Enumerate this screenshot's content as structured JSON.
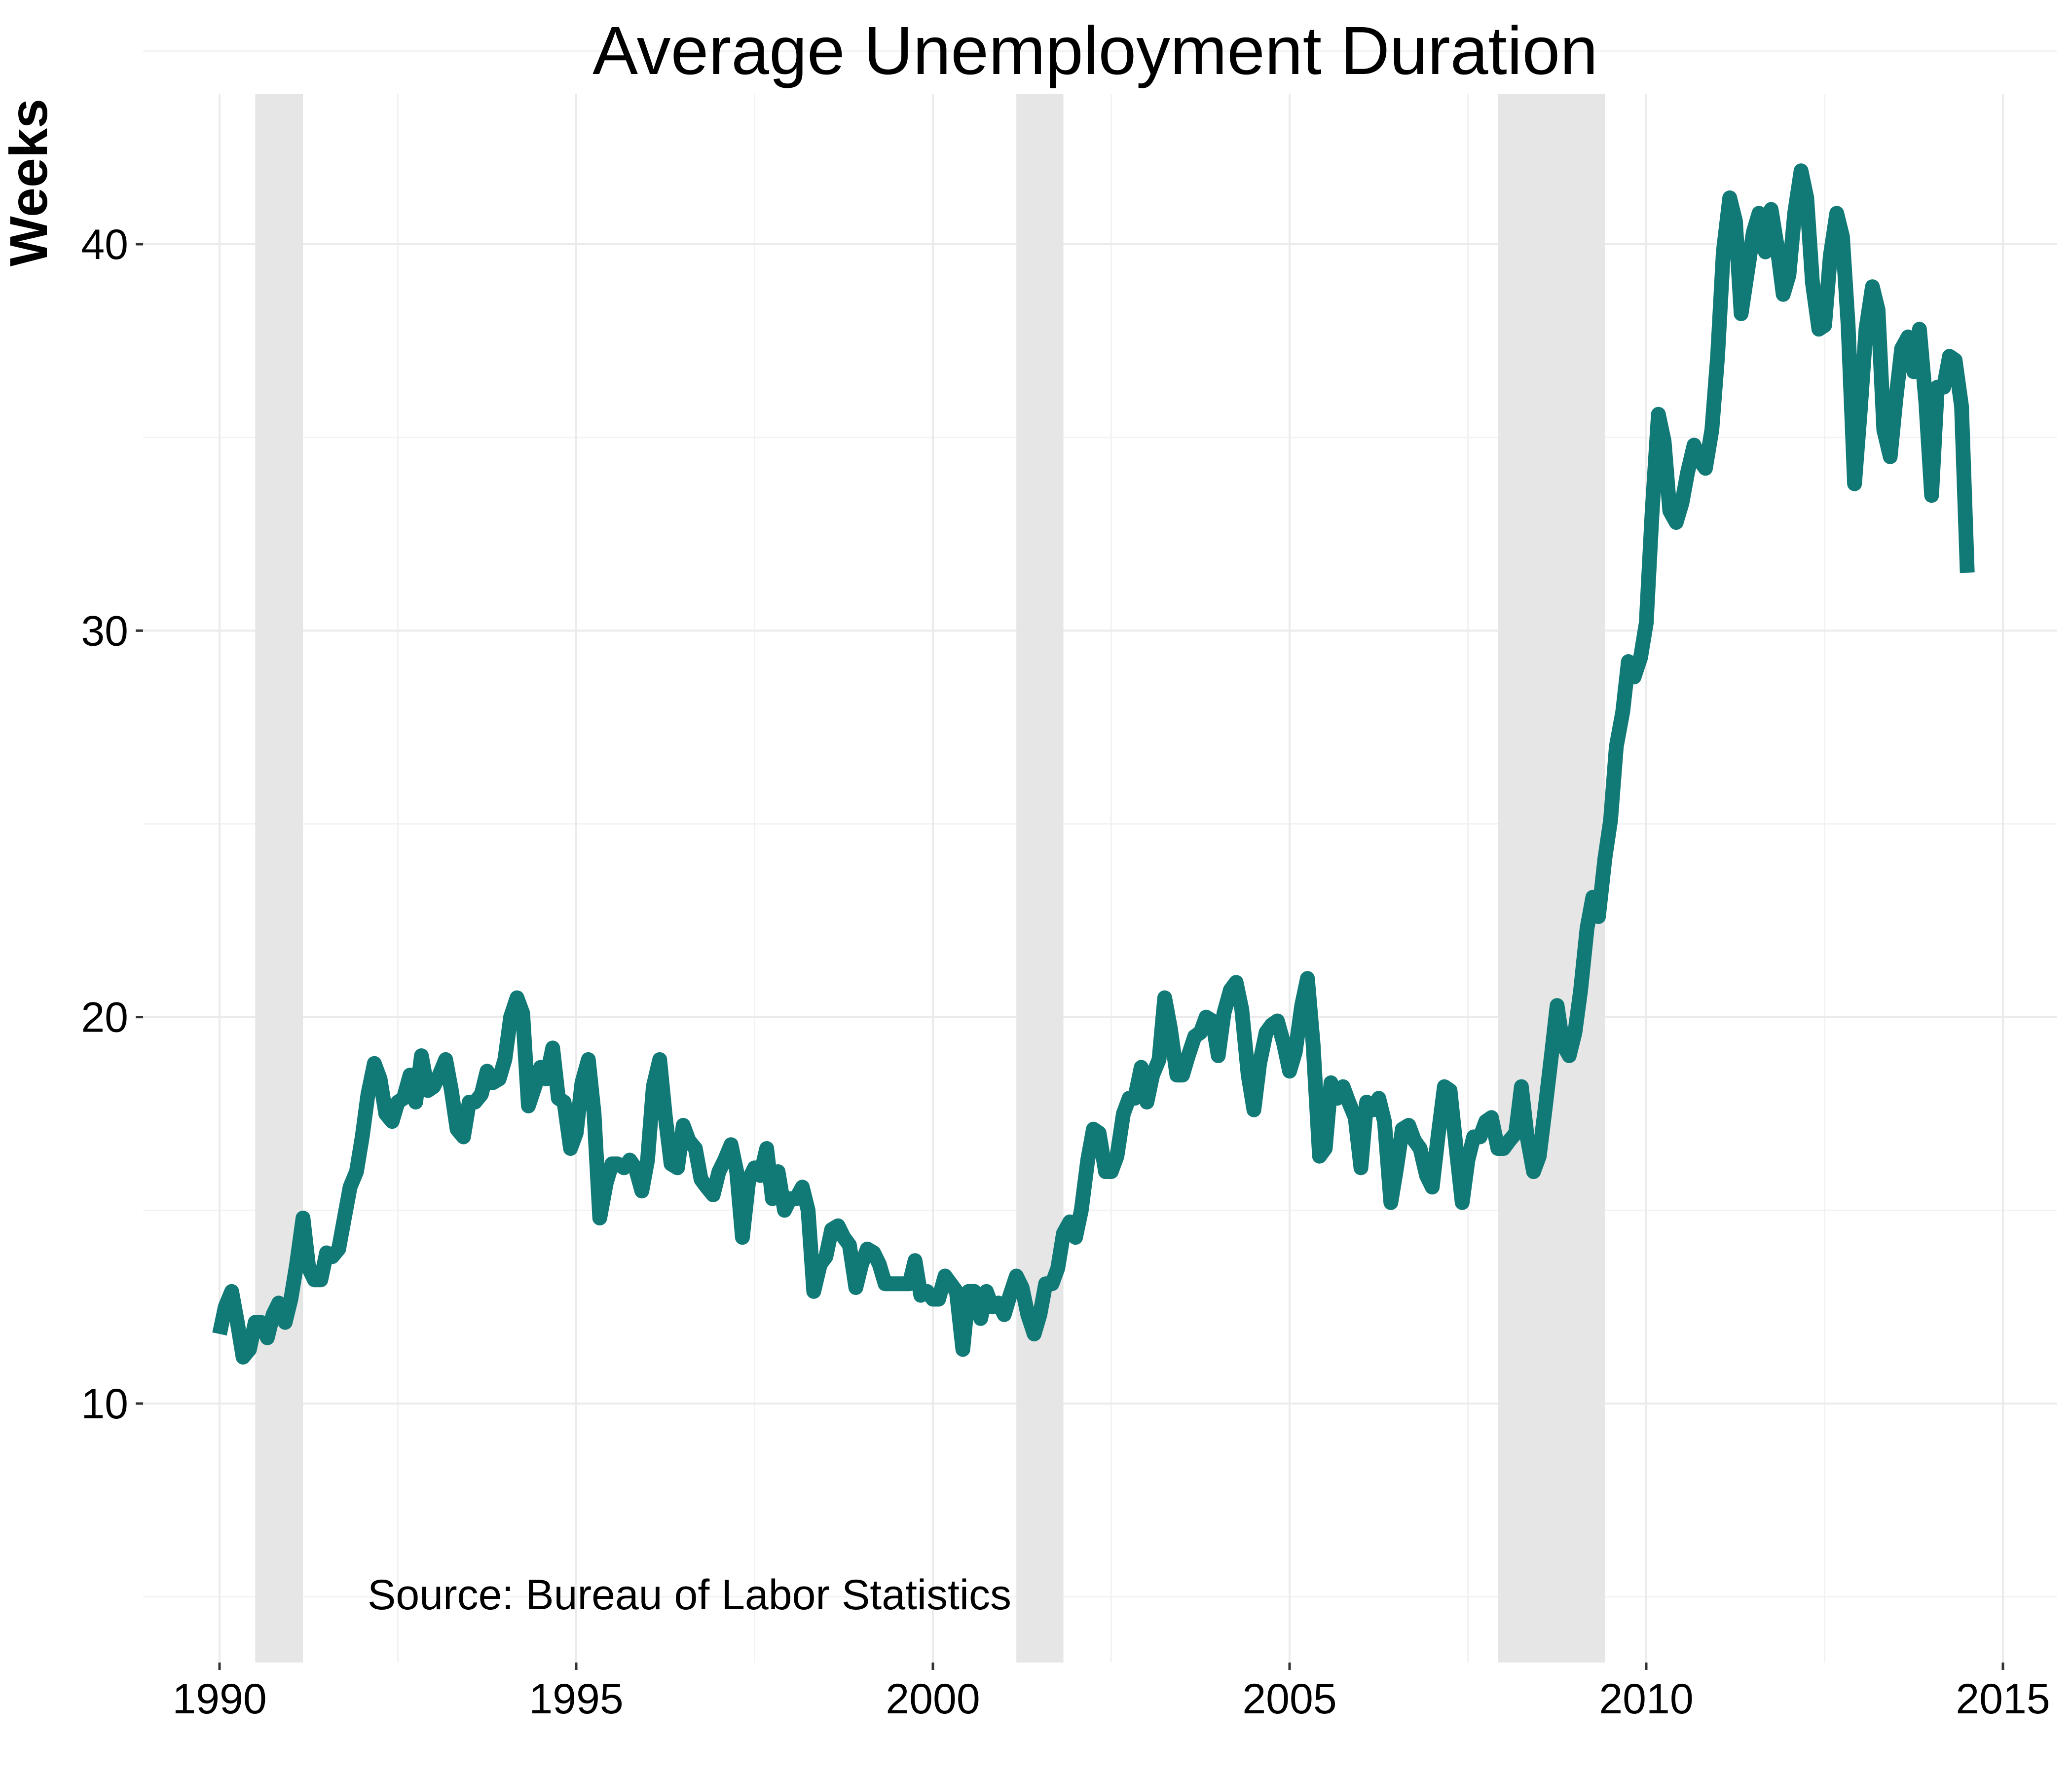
{
  "chart_data": {
    "type": "line",
    "title": "Average Unemployment Duration",
    "ylabel": "Weeks",
    "xlabel": "",
    "annotation": "Source: Bureau of Labor Statistics",
    "x_ticks": [
      1990,
      1995,
      2000,
      2005,
      2010,
      2015
    ],
    "y_ticks": [
      10,
      20,
      30,
      40
    ],
    "xlim": [
      1989.2,
      2015.6
    ],
    "ylim": [
      3.5,
      44.5
    ],
    "grid": true,
    "line_color": "#117a76",
    "recession_color": "#e6e6e6",
    "recessions": [
      [
        1990.5,
        1991.17
      ],
      [
        2001.17,
        2001.83
      ],
      [
        2007.92,
        2009.42
      ]
    ],
    "series": [
      {
        "points": [
          [
            1990.0,
            11.8
          ],
          [
            1990.08,
            12.5
          ],
          [
            1990.17,
            12.9
          ],
          [
            1990.25,
            12.1
          ],
          [
            1990.33,
            11.2
          ],
          [
            1990.42,
            11.4
          ],
          [
            1990.5,
            12.1
          ],
          [
            1990.58,
            12.1
          ],
          [
            1990.67,
            11.7
          ],
          [
            1990.75,
            12.3
          ],
          [
            1990.83,
            12.6
          ],
          [
            1990.92,
            12.1
          ],
          [
            1991.0,
            12.7
          ],
          [
            1991.08,
            13.6
          ],
          [
            1991.17,
            14.8
          ],
          [
            1991.25,
            13.5
          ],
          [
            1991.33,
            13.2
          ],
          [
            1991.42,
            13.2
          ],
          [
            1991.5,
            13.9
          ],
          [
            1991.58,
            13.8
          ],
          [
            1991.67,
            14.0
          ],
          [
            1991.75,
            14.8
          ],
          [
            1991.83,
            15.6
          ],
          [
            1991.92,
            16.0
          ],
          [
            1992.0,
            16.9
          ],
          [
            1992.08,
            18.0
          ],
          [
            1992.17,
            18.8
          ],
          [
            1992.25,
            18.4
          ],
          [
            1992.33,
            17.5
          ],
          [
            1992.42,
            17.3
          ],
          [
            1992.5,
            17.8
          ],
          [
            1992.58,
            17.9
          ],
          [
            1992.67,
            18.5
          ],
          [
            1992.75,
            17.8
          ],
          [
            1992.83,
            19.0
          ],
          [
            1992.92,
            18.1
          ],
          [
            1993.0,
            18.2
          ],
          [
            1993.08,
            18.5
          ],
          [
            1993.17,
            18.9
          ],
          [
            1993.25,
            18.1
          ],
          [
            1993.33,
            17.1
          ],
          [
            1993.42,
            16.9
          ],
          [
            1993.5,
            17.8
          ],
          [
            1993.58,
            17.8
          ],
          [
            1993.67,
            18.0
          ],
          [
            1993.75,
            18.6
          ],
          [
            1993.83,
            18.3
          ],
          [
            1993.92,
            18.4
          ],
          [
            1994.0,
            18.9
          ],
          [
            1994.08,
            20.0
          ],
          [
            1994.17,
            20.5
          ],
          [
            1994.25,
            20.1
          ],
          [
            1994.33,
            17.7
          ],
          [
            1994.42,
            18.2
          ],
          [
            1994.5,
            18.7
          ],
          [
            1994.58,
            18.4
          ],
          [
            1994.67,
            19.2
          ],
          [
            1994.75,
            17.9
          ],
          [
            1994.83,
            17.8
          ],
          [
            1994.92,
            16.6
          ],
          [
            1995.0,
            17.0
          ],
          [
            1995.08,
            18.3
          ],
          [
            1995.17,
            18.9
          ],
          [
            1995.25,
            17.5
          ],
          [
            1995.33,
            14.8
          ],
          [
            1995.42,
            15.7
          ],
          [
            1995.5,
            16.2
          ],
          [
            1995.58,
            16.2
          ],
          [
            1995.67,
            16.1
          ],
          [
            1995.75,
            16.3
          ],
          [
            1995.83,
            16.1
          ],
          [
            1995.92,
            15.5
          ],
          [
            1996.0,
            16.3
          ],
          [
            1996.08,
            18.2
          ],
          [
            1996.17,
            18.9
          ],
          [
            1996.25,
            17.4
          ],
          [
            1996.33,
            16.2
          ],
          [
            1996.42,
            16.1
          ],
          [
            1996.5,
            17.2
          ],
          [
            1996.58,
            16.8
          ],
          [
            1996.67,
            16.6
          ],
          [
            1996.75,
            15.8
          ],
          [
            1996.83,
            15.6
          ],
          [
            1996.92,
            15.4
          ],
          [
            1997.0,
            16.0
          ],
          [
            1997.08,
            16.3
          ],
          [
            1997.17,
            16.7
          ],
          [
            1997.25,
            16.0
          ],
          [
            1997.33,
            14.3
          ],
          [
            1997.42,
            15.8
          ],
          [
            1997.5,
            16.1
          ],
          [
            1997.58,
            15.9
          ],
          [
            1997.67,
            16.6
          ],
          [
            1997.75,
            15.3
          ],
          [
            1997.83,
            16.0
          ],
          [
            1997.92,
            15.0
          ],
          [
            1998.0,
            15.3
          ],
          [
            1998.08,
            15.3
          ],
          [
            1998.17,
            15.6
          ],
          [
            1998.25,
            15.0
          ],
          [
            1998.33,
            12.9
          ],
          [
            1998.42,
            13.6
          ],
          [
            1998.5,
            13.8
          ],
          [
            1998.58,
            14.5
          ],
          [
            1998.67,
            14.6
          ],
          [
            1998.75,
            14.3
          ],
          [
            1998.83,
            14.1
          ],
          [
            1998.92,
            13.0
          ],
          [
            1999.0,
            13.6
          ],
          [
            1999.08,
            14.0
          ],
          [
            1999.17,
            13.9
          ],
          [
            1999.25,
            13.6
          ],
          [
            1999.33,
            13.1
          ],
          [
            1999.42,
            13.1
          ],
          [
            1999.5,
            13.1
          ],
          [
            1999.58,
            13.1
          ],
          [
            1999.67,
            13.1
          ],
          [
            1999.75,
            13.7
          ],
          [
            1999.83,
            12.8
          ],
          [
            1999.92,
            12.9
          ],
          [
            2000.0,
            12.7
          ],
          [
            2000.08,
            12.7
          ],
          [
            2000.17,
            13.3
          ],
          [
            2000.25,
            13.1
          ],
          [
            2000.33,
            12.9
          ],
          [
            2000.42,
            11.4
          ],
          [
            2000.5,
            12.9
          ],
          [
            2000.58,
            12.9
          ],
          [
            2000.67,
            12.2
          ],
          [
            2000.75,
            12.9
          ],
          [
            2000.83,
            12.5
          ],
          [
            2000.92,
            12.6
          ],
          [
            2001.0,
            12.3
          ],
          [
            2001.08,
            12.8
          ],
          [
            2001.17,
            13.3
          ],
          [
            2001.25,
            13.0
          ],
          [
            2001.33,
            12.3
          ],
          [
            2001.42,
            11.8
          ],
          [
            2001.5,
            12.3
          ],
          [
            2001.58,
            13.1
          ],
          [
            2001.67,
            13.1
          ],
          [
            2001.75,
            13.5
          ],
          [
            2001.83,
            14.4
          ],
          [
            2001.92,
            14.7
          ],
          [
            2002.0,
            14.3
          ],
          [
            2002.08,
            15.0
          ],
          [
            2002.17,
            16.3
          ],
          [
            2002.25,
            17.1
          ],
          [
            2002.33,
            17.0
          ],
          [
            2002.42,
            16.0
          ],
          [
            2002.5,
            16.0
          ],
          [
            2002.58,
            16.4
          ],
          [
            2002.67,
            17.5
          ],
          [
            2002.75,
            17.9
          ],
          [
            2002.83,
            17.9
          ],
          [
            2002.92,
            18.7
          ],
          [
            2003.0,
            17.8
          ],
          [
            2003.08,
            18.5
          ],
          [
            2003.17,
            18.9
          ],
          [
            2003.25,
            20.5
          ],
          [
            2003.33,
            19.7
          ],
          [
            2003.42,
            18.5
          ],
          [
            2003.5,
            18.5
          ],
          [
            2003.58,
            19.0
          ],
          [
            2003.67,
            19.5
          ],
          [
            2003.75,
            19.6
          ],
          [
            2003.83,
            20.0
          ],
          [
            2003.92,
            19.9
          ],
          [
            2004.0,
            19.0
          ],
          [
            2004.08,
            20.1
          ],
          [
            2004.17,
            20.7
          ],
          [
            2004.25,
            20.9
          ],
          [
            2004.33,
            20.2
          ],
          [
            2004.42,
            18.5
          ],
          [
            2004.5,
            17.6
          ],
          [
            2004.58,
            18.8
          ],
          [
            2004.67,
            19.6
          ],
          [
            2004.75,
            19.8
          ],
          [
            2004.83,
            19.9
          ],
          [
            2004.92,
            19.3
          ],
          [
            2005.0,
            18.6
          ],
          [
            2005.08,
            19.1
          ],
          [
            2005.17,
            20.3
          ],
          [
            2005.25,
            21.0
          ],
          [
            2005.33,
            19.3
          ],
          [
            2005.42,
            16.4
          ],
          [
            2005.5,
            16.6
          ],
          [
            2005.58,
            18.3
          ],
          [
            2005.67,
            17.9
          ],
          [
            2005.75,
            18.2
          ],
          [
            2005.83,
            17.8
          ],
          [
            2005.92,
            17.4
          ],
          [
            2006.0,
            16.1
          ],
          [
            2006.08,
            17.8
          ],
          [
            2006.17,
            17.6
          ],
          [
            2006.25,
            17.9
          ],
          [
            2006.33,
            17.3
          ],
          [
            2006.42,
            15.2
          ],
          [
            2006.5,
            16.1
          ],
          [
            2006.58,
            17.1
          ],
          [
            2006.67,
            17.2
          ],
          [
            2006.75,
            16.8
          ],
          [
            2006.83,
            16.6
          ],
          [
            2006.92,
            15.9
          ],
          [
            2007.0,
            15.6
          ],
          [
            2007.08,
            16.9
          ],
          [
            2007.17,
            18.2
          ],
          [
            2007.25,
            18.1
          ],
          [
            2007.33,
            16.7
          ],
          [
            2007.42,
            15.2
          ],
          [
            2007.5,
            16.3
          ],
          [
            2007.58,
            16.9
          ],
          [
            2007.67,
            16.9
          ],
          [
            2007.75,
            17.3
          ],
          [
            2007.83,
            17.4
          ],
          [
            2007.92,
            16.6
          ],
          [
            2008.0,
            16.6
          ],
          [
            2008.08,
            16.8
          ],
          [
            2008.17,
            17.0
          ],
          [
            2008.25,
            18.2
          ],
          [
            2008.33,
            16.9
          ],
          [
            2008.42,
            16.0
          ],
          [
            2008.5,
            16.4
          ],
          [
            2008.58,
            17.6
          ],
          [
            2008.67,
            19.0
          ],
          [
            2008.75,
            20.3
          ],
          [
            2008.83,
            19.3
          ],
          [
            2008.92,
            19.0
          ],
          [
            2009.0,
            19.6
          ],
          [
            2009.08,
            20.7
          ],
          [
            2009.17,
            22.3
          ],
          [
            2009.25,
            23.1
          ],
          [
            2009.33,
            22.6
          ],
          [
            2009.42,
            24.1
          ],
          [
            2009.5,
            25.1
          ],
          [
            2009.58,
            27.0
          ],
          [
            2009.67,
            27.9
          ],
          [
            2009.75,
            29.2
          ],
          [
            2009.83,
            28.8
          ],
          [
            2009.92,
            29.3
          ],
          [
            2010.0,
            30.2
          ],
          [
            2010.08,
            33.0
          ],
          [
            2010.17,
            35.6
          ],
          [
            2010.25,
            34.9
          ],
          [
            2010.33,
            33.1
          ],
          [
            2010.42,
            32.8
          ],
          [
            2010.5,
            33.3
          ],
          [
            2010.58,
            34.1
          ],
          [
            2010.67,
            34.8
          ],
          [
            2010.75,
            34.4
          ],
          [
            2010.83,
            34.2
          ],
          [
            2010.92,
            35.2
          ],
          [
            2011.0,
            37.1
          ],
          [
            2011.08,
            39.8
          ],
          [
            2011.17,
            41.2
          ],
          [
            2011.25,
            40.6
          ],
          [
            2011.33,
            38.2
          ],
          [
            2011.42,
            39.3
          ],
          [
            2011.5,
            40.3
          ],
          [
            2011.58,
            40.8
          ],
          [
            2011.67,
            39.8
          ],
          [
            2011.75,
            40.9
          ],
          [
            2011.83,
            40.0
          ],
          [
            2011.92,
            38.7
          ],
          [
            2012.0,
            39.2
          ],
          [
            2012.08,
            40.8
          ],
          [
            2012.17,
            41.9
          ],
          [
            2012.25,
            41.2
          ],
          [
            2012.33,
            39.0
          ],
          [
            2012.42,
            37.8
          ],
          [
            2012.5,
            37.9
          ],
          [
            2012.58,
            39.7
          ],
          [
            2012.67,
            40.8
          ],
          [
            2012.75,
            40.2
          ],
          [
            2012.83,
            37.9
          ],
          [
            2012.92,
            33.8
          ],
          [
            2013.0,
            35.7
          ],
          [
            2013.08,
            37.8
          ],
          [
            2013.17,
            38.9
          ],
          [
            2013.25,
            38.3
          ],
          [
            2013.33,
            35.2
          ],
          [
            2013.42,
            34.5
          ],
          [
            2013.5,
            36.0
          ],
          [
            2013.58,
            37.3
          ],
          [
            2013.67,
            37.6
          ],
          [
            2013.75,
            36.7
          ],
          [
            2013.83,
            37.8
          ],
          [
            2013.92,
            35.9
          ],
          [
            2014.0,
            33.5
          ],
          [
            2014.08,
            36.3
          ],
          [
            2014.17,
            36.3
          ],
          [
            2014.25,
            37.1
          ],
          [
            2014.33,
            37.0
          ],
          [
            2014.42,
            35.8
          ],
          [
            2014.5,
            31.5
          ]
        ]
      }
    ]
  }
}
